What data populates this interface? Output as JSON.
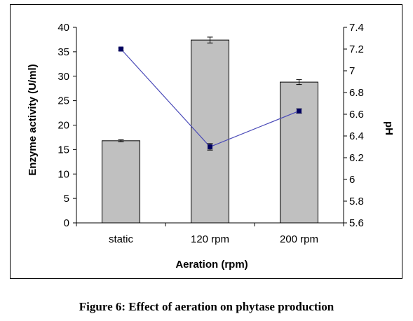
{
  "caption": "Figure 6: Effect of aeration on phytase production",
  "chart_data": {
    "type": "bar",
    "categories": [
      "static",
      "120 rpm",
      "200 rpm"
    ],
    "xlabel": "Aeration (rpm)",
    "ylabel": "Enzyme activity  (U/ml)",
    "y2label": "pH",
    "ylim": [
      0,
      40
    ],
    "y_ticks": [
      0,
      5,
      10,
      15,
      20,
      25,
      30,
      35,
      40
    ],
    "y2lim": [
      5.6,
      7.4
    ],
    "y2_ticks": [
      "5.6",
      "5.8",
      "6",
      "6.2",
      "6.4",
      "6.6",
      "6.8",
      "7",
      "7.2",
      "7.4"
    ],
    "grid": false,
    "legend": "none",
    "series": [
      {
        "type": "bar",
        "axis": "left",
        "values": [
          16.8,
          37.4,
          28.8
        ],
        "errors": [
          0.2,
          0.6,
          0.5
        ],
        "color": "#c0c0c0"
      },
      {
        "type": "line",
        "axis": "right",
        "values": [
          7.2,
          6.3,
          6.63
        ],
        "errors": [
          0.01,
          0.03,
          0.02
        ],
        "color": "#4a4ab8",
        "marker_color": "#000060"
      }
    ]
  }
}
